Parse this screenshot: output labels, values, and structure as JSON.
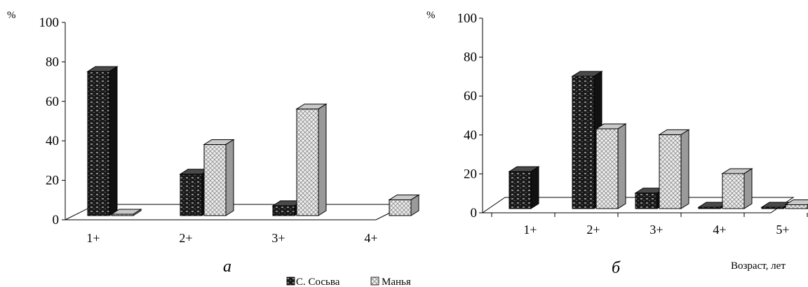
{
  "figure": {
    "legend": [
      {
        "key": "sosva",
        "label": "С. Сосьва"
      },
      {
        "key": "manya",
        "label": "Манья"
      }
    ]
  },
  "chart_data": [
    {
      "type": "bar",
      "panel_label": "а",
      "ylabel": "%",
      "xlabel": "",
      "ylim": [
        0,
        100
      ],
      "yticks": [
        "0",
        "20",
        "40",
        "60",
        "80",
        "100"
      ],
      "categories": [
        "1+",
        "2+",
        "3+",
        "4+"
      ],
      "series": [
        {
          "name": "С. Сосьва",
          "values": [
            73,
            21,
            5,
            0
          ]
        },
        {
          "name": "Манья",
          "values": [
            0,
            36,
            54,
            8
          ]
        }
      ]
    },
    {
      "type": "bar",
      "panel_label": "б",
      "ylabel": "%",
      "xlabel": "Возраст, лет",
      "ylim": [
        0,
        100
      ],
      "yticks": [
        "0",
        "20",
        "40",
        "60",
        "80",
        "100"
      ],
      "categories": [
        "1+",
        "2+",
        "3+",
        "4+",
        "5+"
      ],
      "series": [
        {
          "name": "С. Сосьва",
          "values": [
            19,
            68,
            8,
            0,
            0
          ]
        },
        {
          "name": "Манья",
          "values": [
            0,
            41,
            38,
            18,
            2
          ]
        }
      ]
    }
  ]
}
